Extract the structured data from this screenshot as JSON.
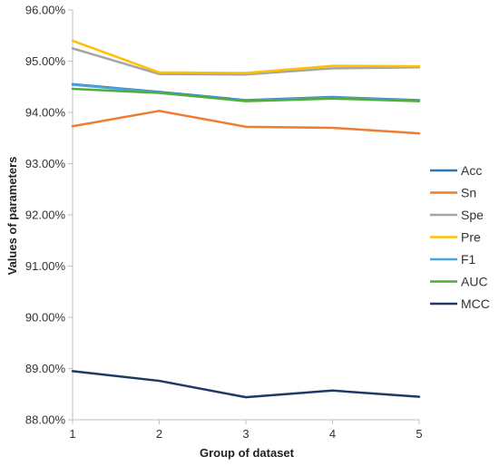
{
  "chart_data": {
    "type": "line",
    "xlabel": "Group of dataset",
    "ylabel": "Values of parameters",
    "x": [
      1,
      2,
      3,
      4,
      5
    ],
    "x_tick_labels": [
      "1",
      "2",
      "3",
      "4",
      "5"
    ],
    "ylim": [
      0.88,
      0.96
    ],
    "y_ticks": [
      0.88,
      0.89,
      0.9,
      0.91,
      0.92,
      0.93,
      0.94,
      0.95,
      0.96
    ],
    "y_tick_labels": [
      "88.00%",
      "89.00%",
      "90.00%",
      "91.00%",
      "92.00%",
      "93.00%",
      "94.00%",
      "95.00%",
      "96.00%"
    ],
    "grid": false,
    "legend_position": "right",
    "series": [
      {
        "name": "Acc",
        "color": "#2e75b6",
        "values": [
          0.9455,
          0.944,
          0.9424,
          0.943,
          0.9424
        ]
      },
      {
        "name": "Sn",
        "color": "#ed7d31",
        "values": [
          0.9373,
          0.9403,
          0.9372,
          0.937,
          0.9359
        ]
      },
      {
        "name": "Spe",
        "color": "#a5a5a5",
        "values": [
          0.9525,
          0.9475,
          0.9474,
          0.9486,
          0.9488
        ]
      },
      {
        "name": "Pre",
        "color": "#ffc000",
        "values": [
          0.954,
          0.9478,
          0.9477,
          0.9491,
          0.949
        ]
      },
      {
        "name": "F1",
        "color": "#4aa3df",
        "values": [
          0.9454,
          0.9439,
          0.9423,
          0.9429,
          0.9423
        ]
      },
      {
        "name": "AUC",
        "color": "#4fad3a",
        "values": [
          0.9446,
          0.9438,
          0.9422,
          0.9427,
          0.9422
        ]
      },
      {
        "name": "MCC",
        "color": "#1f3864",
        "values": [
          0.8895,
          0.8876,
          0.8844,
          0.8857,
          0.8845
        ]
      }
    ]
  }
}
